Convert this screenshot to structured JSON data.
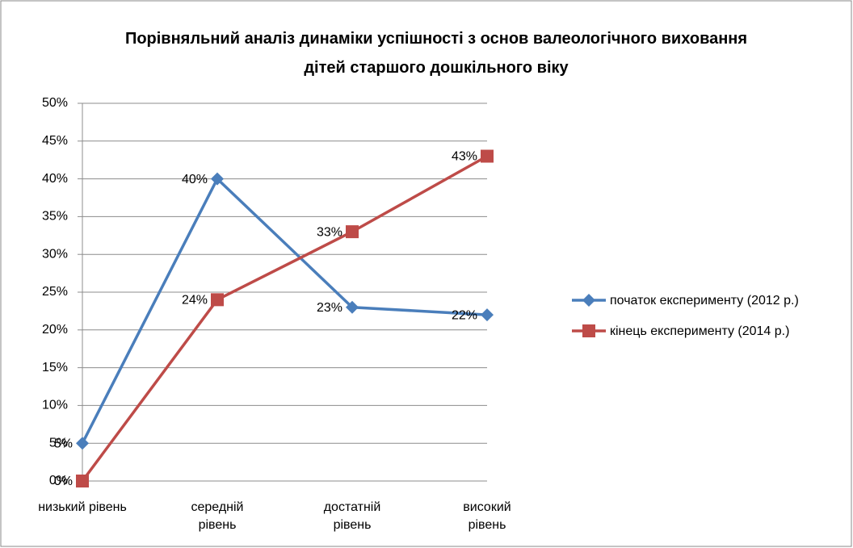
{
  "chart_data": {
    "type": "line",
    "title": "Порівняльний аналіз динаміки успішності з основ валеологічного виховання дітей старшого дошкільного віку",
    "categories": [
      "низький рівень",
      "середній рівень",
      "достатній рівень",
      "високий рівень"
    ],
    "series": [
      {
        "name": "початок експерименту (2012 р.)",
        "color": "#4a7ebb",
        "marker": "diamond",
        "values": [
          5,
          40,
          23,
          22
        ],
        "value_labels": [
          "5%",
          "40%",
          "23%",
          "22%"
        ]
      },
      {
        "name": "кінець експерименту (2014 р.)",
        "color": "#be4b48",
        "marker": "square",
        "values": [
          0,
          24,
          33,
          43
        ],
        "value_labels": [
          "0%",
          "24%",
          "33%",
          "43%"
        ]
      }
    ],
    "ylim": [
      0,
      50
    ],
    "yticks": [
      {
        "value": 0,
        "label": "0%"
      },
      {
        "value": 5,
        "label": "5%"
      },
      {
        "value": 10,
        "label": "10%"
      },
      {
        "value": 15,
        "label": "15%"
      },
      {
        "value": 20,
        "label": "20%"
      },
      {
        "value": 25,
        "label": "25%"
      },
      {
        "value": 30,
        "label": "30%"
      },
      {
        "value": 35,
        "label": "35%"
      },
      {
        "value": 40,
        "label": "40%"
      },
      {
        "value": 45,
        "label": "45%"
      },
      {
        "value": 50,
        "label": "50%"
      }
    ],
    "grid": true,
    "legend": "right"
  }
}
